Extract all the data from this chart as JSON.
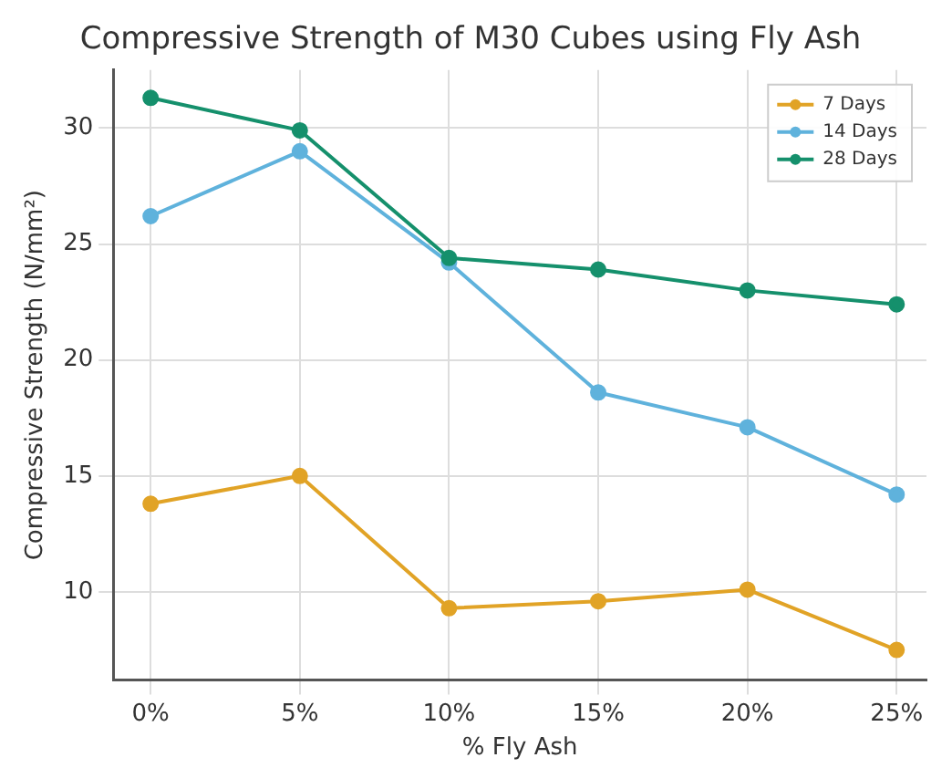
{
  "chart_data": {
    "type": "line",
    "title": "Compressive Strength of M30 Cubes using Fly Ash",
    "xlabel": "% Fly Ash",
    "ylabel": "Compressive Strength (N/mm²)",
    "x": [
      0,
      5,
      10,
      15,
      20,
      25
    ],
    "series": [
      {
        "name": "7 Days",
        "color": "#e1a326",
        "values": [
          13.8,
          15.0,
          9.3,
          9.6,
          10.1,
          7.5
        ]
      },
      {
        "name": "14 Days",
        "color": "#5fb2dc",
        "values": [
          26.2,
          29.0,
          24.2,
          18.6,
          17.1,
          14.2
        ]
      },
      {
        "name": "28 Days",
        "color": "#15906c",
        "values": [
          31.3,
          29.9,
          24.4,
          23.9,
          23.0,
          22.4
        ]
      }
    ],
    "xlim": [
      -1.25,
      26
    ],
    "xticks": [
      {
        "value": 0,
        "label": "0%"
      },
      {
        "value": 5,
        "label": "5%"
      },
      {
        "value": 10,
        "label": "10%"
      },
      {
        "value": 15,
        "label": "15%"
      },
      {
        "value": 20,
        "label": "20%"
      },
      {
        "value": 25,
        "label": "25%"
      }
    ],
    "ylim": [
      6.2,
      32.5
    ],
    "yticks": [
      10,
      15,
      20,
      25,
      30
    ],
    "grid": true,
    "legend": "top right",
    "marker": "circle",
    "line_style": "solid"
  }
}
